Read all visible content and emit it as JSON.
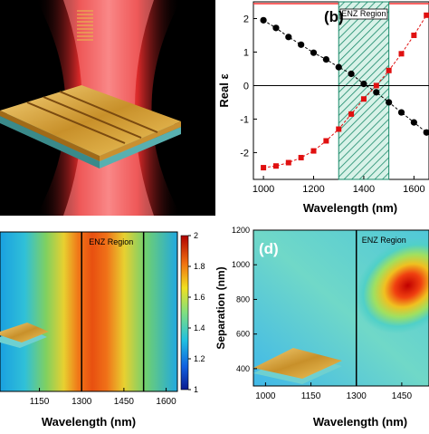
{
  "chart_data": [
    {
      "panel": "a",
      "type": "illustration",
      "colors": {
        "background": "#000000",
        "beam": "#ff2a2a",
        "gold": "#e0b040",
        "substrate": "#7ad7d7"
      }
    },
    {
      "panel": "b",
      "type": "line",
      "panel_label": "(b)",
      "region_label": "ENZ Region",
      "region": [
        1300,
        1500
      ],
      "xlabel": "Wavelength (nm)",
      "ylabel": "Real ε",
      "xlim": [
        960,
        1660
      ],
      "ylim": [
        -2.8,
        2.5
      ],
      "x_ticks": [
        1000,
        1200,
        1400,
        1600
      ],
      "y_ticks": [
        -2,
        -1,
        0,
        1,
        2
      ],
      "x_tick_labels": [
        "1000",
        "1200",
        "1400",
        "1600"
      ],
      "y_tick_labels": [
        "-2",
        "-1",
        "0",
        "1",
        "2"
      ],
      "series": [
        {
          "color": "#000000",
          "marker": "circle",
          "x": [
            1000,
            1050,
            1100,
            1150,
            1200,
            1250,
            1300,
            1350,
            1400,
            1450,
            1500,
            1550,
            1600,
            1650
          ],
          "y": [
            1.95,
            1.72,
            1.45,
            1.22,
            0.98,
            0.78,
            0.55,
            0.35,
            0.05,
            -0.2,
            -0.5,
            -0.8,
            -1.1,
            -1.4
          ]
        },
        {
          "color": "#e01010",
          "marker": "square",
          "x": [
            1000,
            1050,
            1100,
            1150,
            1200,
            1250,
            1300,
            1350,
            1400,
            1450,
            1500,
            1550,
            1600,
            1650
          ],
          "y": [
            -2.45,
            -2.4,
            -2.3,
            -2.15,
            -1.95,
            -1.65,
            -1.3,
            -0.85,
            -0.4,
            0.0,
            0.45,
            0.95,
            1.5,
            2.1
          ]
        }
      ],
      "colors": {
        "region_hatch": "#1a8a6a",
        "region_fill": "#cdeee0",
        "top_line": "#ff3030"
      }
    },
    {
      "panel": "c",
      "type": "heatmap",
      "region_label": "ENZ Region",
      "xlabel": "Wavelength (nm)",
      "x_ticks": [
        1150,
        1300,
        1450,
        1600
      ],
      "x_tick_labels": [
        "1150",
        "1300",
        "1450",
        "1600"
      ],
      "xlim": [
        1010,
        1640
      ],
      "region": [
        1300,
        1520
      ],
      "colorbar": {
        "min": 1,
        "max": 2,
        "ticks": [
          1,
          1.2,
          1.4,
          1.6,
          1.8,
          2
        ],
        "tick_labels": [
          "1",
          "1.2",
          "1.4",
          "1.6",
          "1.8",
          "2"
        ]
      }
    },
    {
      "panel": "d",
      "type": "heatmap",
      "panel_label": "(d)",
      "region_label": "ENZ Region",
      "xlabel": "Wavelength (nm)",
      "ylabel": "Separation (nm)",
      "xlim": [
        960,
        1540
      ],
      "ylim": [
        300,
        1200
      ],
      "x_ticks": [
        1000,
        1150,
        1300,
        1450
      ],
      "x_tick_labels": [
        "1000",
        "1150",
        "1300",
        "1450"
      ],
      "y_ticks": [
        400,
        600,
        800,
        1000,
        1200
      ],
      "y_tick_labels": [
        "400",
        "600",
        "800",
        "1000",
        "1200"
      ],
      "region_line": 1300,
      "hotspot": {
        "x": 1470,
        "y": 880
      }
    }
  ]
}
